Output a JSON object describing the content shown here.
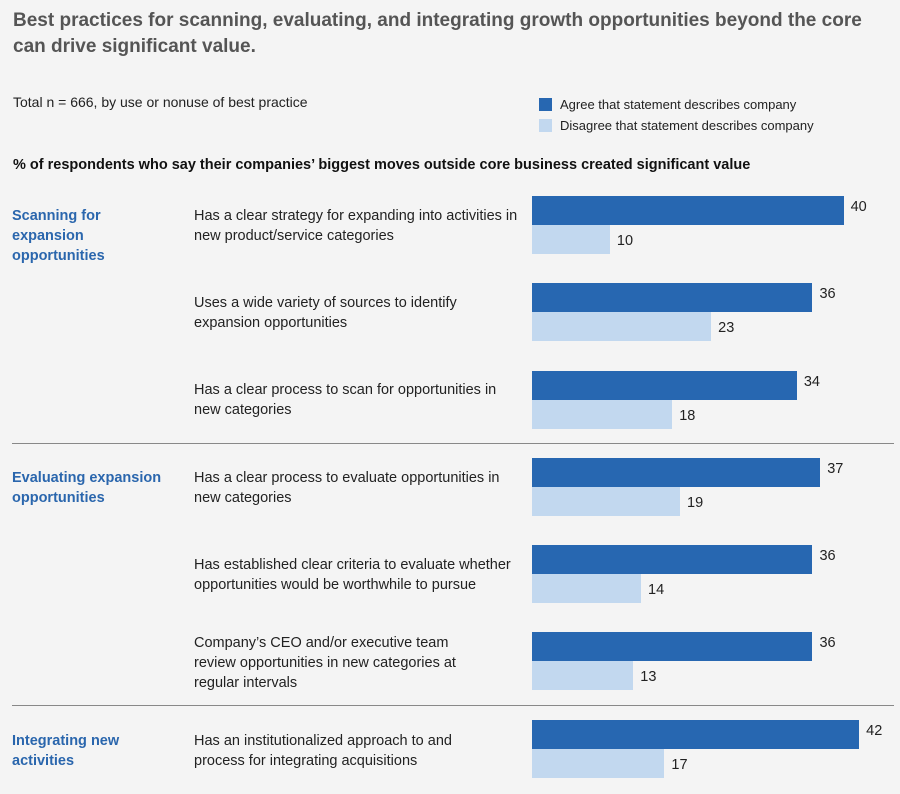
{
  "title": "Best practices for scanning, evaluating, and integrating growth opportunities beyond the core can drive significant value.",
  "subtitle": "Total n = 666, by use or nonuse of best practice",
  "question": "% of respondents who say their companies’ biggest moves outside core business created significant value",
  "colors": {
    "agree": "#2767b1",
    "disagree": "#c2d8ef"
  },
  "chart_data": {
    "type": "bar",
    "orientation": "horizontal",
    "series": [
      {
        "name": "Agree that statement describes company",
        "values": [
          40,
          36,
          34,
          37,
          36,
          36,
          42
        ]
      },
      {
        "name": "Disagree that statement describes company",
        "values": [
          10,
          23,
          18,
          19,
          14,
          13,
          17
        ]
      }
    ],
    "groups": [
      {
        "label": "Scanning for expansion opportunities",
        "items": [
          0,
          1,
          2
        ]
      },
      {
        "label": "Evaluating expansion opportunities",
        "items": [
          3,
          4,
          5
        ]
      },
      {
        "label": "Integrating new activities",
        "items": [
          6
        ]
      }
    ],
    "categories": [
      "Has a clear strategy for expanding into activities in new product/service categories",
      "Uses a wide variety of sources to identify expansion opportunities",
      "Has a clear process to scan for opportunities in new categories",
      "Has a clear process to evaluate opportunities in new categories",
      "Has established clear criteria to evaluate whether opportunities would be worthwhile to pursue",
      "Company’s CEO and/or executive team review opportunities in new categories at regular intervals",
      "Has an institutionalized approach to and process for integrating acquisitions"
    ],
    "xlim": [
      0,
      42
    ]
  }
}
